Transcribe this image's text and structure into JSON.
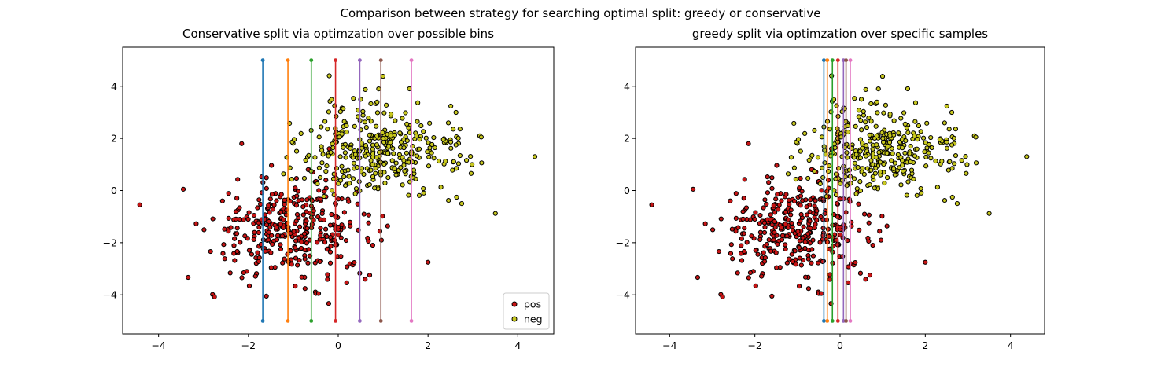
{
  "figure": {
    "suptitle": "Comparison between strategy for searching optimal split: greedy or conservative"
  },
  "colors": {
    "pos": "#c81414",
    "neg": "#c8c81e",
    "marker_edge": "#000000",
    "split_lines": [
      "#1f77b4",
      "#ff7f0e",
      "#2ca02c",
      "#d62728",
      "#9467bd",
      "#8c564b",
      "#e377c2"
    ]
  },
  "chart_data": [
    {
      "type": "scatter",
      "title": "Conservative split via optimzation over possible bins",
      "xlabel": "",
      "ylabel": "",
      "xlim": [
        -4.8,
        4.8
      ],
      "ylim": [
        -5.5,
        5.5
      ],
      "xticks": [
        -4,
        -2,
        0,
        2,
        4
      ],
      "yticks": [
        -4,
        -2,
        0,
        2,
        4
      ],
      "grid": false,
      "legend": {
        "placement": "lower-right",
        "entries": [
          "pos",
          "neg"
        ]
      },
      "split_lines": [
        {
          "x": -1.68,
          "y_range": [
            -5,
            5
          ]
        },
        {
          "x": -1.12,
          "y_range": [
            -5,
            5
          ]
        },
        {
          "x": -0.6,
          "y_range": [
            -5,
            5
          ]
        },
        {
          "x": -0.06,
          "y_range": [
            -5,
            5
          ]
        },
        {
          "x": 0.48,
          "y_range": [
            -5,
            5
          ]
        },
        {
          "x": 0.95,
          "y_range": [
            -5,
            5
          ]
        },
        {
          "x": 1.63,
          "y_range": [
            -5,
            5
          ]
        }
      ],
      "series": [
        {
          "name": "pos",
          "distribution": {
            "mean": [
              -1.0,
              -1.5
            ],
            "std": [
              0.9,
              0.9
            ],
            "count": 350
          },
          "outliers": [
            [
              -4.42,
              -0.55
            ],
            [
              -3.45,
              0.05
            ],
            [
              -2.15,
              1.8
            ],
            [
              -0.2,
              1.6
            ],
            [
              -1.6,
              -4.05
            ],
            [
              2.0,
              -2.75
            ],
            [
              0.6,
              -3.4
            ]
          ]
        },
        {
          "name": "neg",
          "distribution": {
            "mean": [
              1.0,
              1.5
            ],
            "std": [
              0.9,
              0.9
            ],
            "count": 350
          },
          "outliers": [
            [
              4.38,
              1.3
            ],
            [
              3.5,
              -0.88
            ],
            [
              2.75,
              -0.5
            ],
            [
              -0.2,
              4.4
            ],
            [
              0.9,
              3.9
            ],
            [
              0.5,
              3.5
            ]
          ]
        }
      ]
    },
    {
      "type": "scatter",
      "title": "greedy split via optimzation over specific samples",
      "xlabel": "",
      "ylabel": "",
      "xlim": [
        -4.8,
        4.8
      ],
      "ylim": [
        -5.5,
        5.5
      ],
      "xticks": [
        -4,
        -2,
        0,
        2,
        4
      ],
      "yticks": [
        -4,
        -2,
        0,
        2,
        4
      ],
      "grid": false,
      "split_lines": [
        {
          "x": -0.38,
          "y_range": [
            -5,
            5
          ]
        },
        {
          "x": -0.3,
          "y_range": [
            -5,
            5
          ]
        },
        {
          "x": -0.18,
          "y_range": [
            -5,
            5
          ]
        },
        {
          "x": -0.05,
          "y_range": [
            -5,
            5
          ]
        },
        {
          "x": 0.08,
          "y_range": [
            -5,
            5
          ]
        },
        {
          "x": 0.14,
          "y_range": [
            -5,
            5
          ]
        },
        {
          "x": 0.24,
          "y_range": [
            -5,
            5
          ]
        }
      ],
      "series": [
        {
          "name": "pos",
          "distribution": {
            "mean": [
              -1.0,
              -1.5
            ],
            "std": [
              0.9,
              0.9
            ],
            "count": 350
          },
          "outliers": [
            [
              -4.42,
              -0.55
            ],
            [
              -3.45,
              0.05
            ],
            [
              -2.15,
              1.8
            ],
            [
              -0.2,
              1.6
            ],
            [
              -1.6,
              -4.05
            ],
            [
              2.0,
              -2.75
            ],
            [
              0.6,
              -3.4
            ]
          ]
        },
        {
          "name": "neg",
          "distribution": {
            "mean": [
              1.0,
              1.5
            ],
            "std": [
              0.9,
              0.9
            ],
            "count": 350
          },
          "outliers": [
            [
              4.38,
              1.3
            ],
            [
              3.5,
              -0.88
            ],
            [
              2.75,
              -0.5
            ],
            [
              -0.2,
              4.4
            ],
            [
              0.9,
              3.9
            ],
            [
              0.5,
              3.5
            ]
          ]
        }
      ]
    }
  ]
}
